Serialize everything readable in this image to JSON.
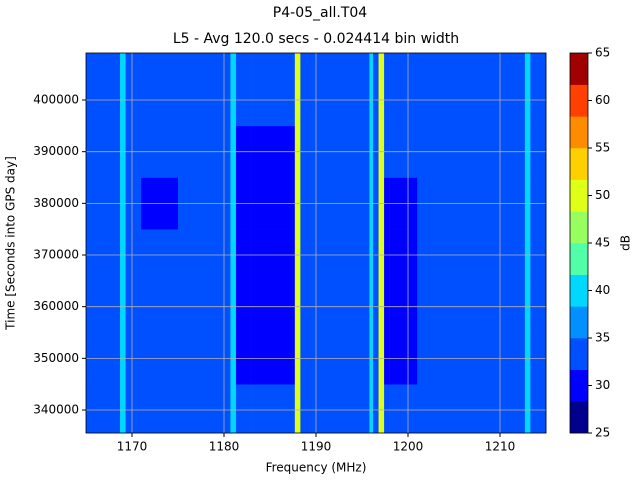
{
  "chart_data": {
    "type": "heatmap",
    "title": "P4-05_all.T04",
    "subtitle": "L5 - Avg 120.0 secs - 0.024414 bin width",
    "x_label": "Frequency (MHz)",
    "y_label": "Time [Seconds into GPS day]",
    "xlim": [
      1165,
      1215
    ],
    "xticks": [
      1170,
      1180,
      1190,
      1200,
      1210
    ],
    "ylim": [
      335550,
      409100
    ],
    "yticks": [
      340000,
      350000,
      360000,
      370000,
      380000,
      390000,
      400000
    ],
    "grid": true,
    "xbins": [
      1165,
      1168.7,
      1169.3,
      1171,
      1175,
      1180.7,
      1181.3,
      1183,
      1187.7,
      1188.3,
      1190,
      1195.8,
      1196.2,
      1196.8,
      1197.4,
      1198,
      1201,
      1212.7,
      1213.3,
      1215
    ],
    "ybins": [
      335550,
      345000,
      355000,
      365000,
      375000,
      385000,
      395000,
      409100
    ],
    "z": [
      [
        33,
        40,
        33,
        33,
        33,
        40,
        33,
        33,
        50,
        33,
        33,
        40,
        33,
        50,
        33,
        33,
        33,
        40,
        33
      ],
      [
        33,
        40,
        33,
        33,
        33,
        40,
        31,
        31,
        50,
        33,
        33,
        40,
        33,
        50,
        31,
        31,
        33,
        40,
        33
      ],
      [
        33,
        40,
        33,
        33,
        33,
        40,
        31,
        31,
        50,
        33,
        33,
        40,
        33,
        50,
        31,
        31,
        33,
        40,
        33
      ],
      [
        33,
        40,
        33,
        33,
        33,
        40,
        31,
        31,
        50,
        33,
        33,
        40,
        33,
        50,
        31,
        31,
        33,
        40,
        33
      ],
      [
        33,
        40,
        33,
        31,
        33,
        40,
        31,
        31,
        50,
        33,
        33,
        40,
        33,
        50,
        31,
        31,
        33,
        40,
        33
      ],
      [
        33,
        40,
        33,
        33,
        33,
        40,
        31,
        31,
        50,
        33,
        33,
        40,
        33,
        50,
        33,
        33,
        33,
        40,
        33
      ],
      [
        33,
        40,
        33,
        33,
        33,
        40,
        33,
        33,
        50,
        33,
        33,
        40,
        33,
        50,
        33,
        33,
        33,
        40,
        33
      ]
    ],
    "colorbar": {
      "label": "dB",
      "ticks": [
        25,
        30,
        35,
        40,
        45,
        50,
        55,
        60,
        65
      ],
      "levels": [
        25,
        28.33,
        31.67,
        35,
        38.33,
        41.67,
        45,
        48.33,
        51.67,
        55,
        58.33,
        61.67,
        65
      ],
      "colors": [
        "#00008f",
        "#0000ff",
        "#0050ff",
        "#0090ff",
        "#00d8ff",
        "#50ffa8",
        "#98ff60",
        "#e0ff18",
        "#ffd000",
        "#ff8c00",
        "#ff4000",
        "#a00000"
      ]
    }
  }
}
